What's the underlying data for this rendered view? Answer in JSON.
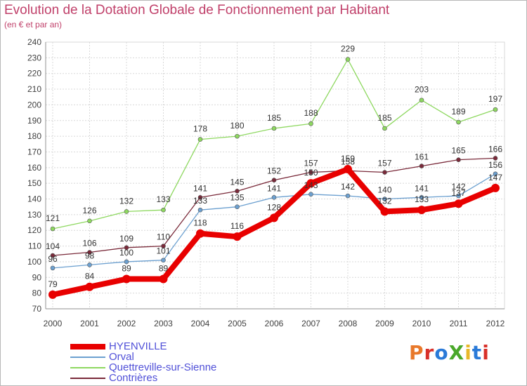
{
  "title": "Evolution de la Dotation Globale de Fonctionnement par Habitant",
  "subtitle": "(en € et par an)",
  "logo": {
    "text": "ProXiti",
    "colors": [
      "#e8782a",
      "#d8302a",
      "#2a7ad8",
      "#4aa82a",
      "#e8b82a",
      "#2a7ad8",
      "#d8302a"
    ]
  },
  "chart_data": {
    "type": "line",
    "x": [
      "2000",
      "2001",
      "2002",
      "2003",
      "2004",
      "2005",
      "2006",
      "2007",
      "2008",
      "2009",
      "2010",
      "2011",
      "2012"
    ],
    "ylim": [
      70,
      240
    ],
    "yticks": [
      70,
      80,
      90,
      100,
      110,
      120,
      130,
      140,
      150,
      160,
      170,
      180,
      190,
      200,
      210,
      220,
      230,
      240
    ],
    "grid": true,
    "legend_position": "bottom-left",
    "series": [
      {
        "name": "HYENVILLE",
        "color": "#e80000",
        "values": [
          79,
          84,
          89,
          89,
          118,
          116,
          128,
          150,
          159,
          132,
          133,
          137,
          147
        ],
        "labels": [
          "79",
          "84",
          "89",
          "89",
          "118",
          "116",
          "128",
          "150",
          "159",
          "132",
          "133",
          "137",
          "147"
        ]
      },
      {
        "name": "Orval",
        "color": "#6ca0d0",
        "values": [
          96,
          98,
          100,
          101,
          133,
          135,
          141,
          143,
          142,
          140,
          141,
          142,
          156
        ],
        "labels": [
          "96",
          "98",
          "100",
          "101",
          "133",
          "135",
          "141",
          "143",
          "142",
          "140",
          "141",
          "142",
          "156"
        ]
      },
      {
        "name": "Quettreville-sur-Sienne",
        "color": "#8ed860",
        "values": [
          121,
          126,
          132,
          133,
          178,
          180,
          185,
          188,
          229,
          185,
          203,
          189,
          197
        ],
        "labels": [
          "121",
          "126",
          "132",
          "133",
          "178",
          "180",
          "185",
          "188",
          "229",
          "185",
          "203",
          "189",
          "197"
        ]
      },
      {
        "name": "Contrières",
        "color": "#7a2a3a",
        "values": [
          104,
          106,
          109,
          110,
          141,
          145,
          152,
          157,
          158,
          157,
          161,
          165,
          166
        ],
        "labels": [
          "104",
          "106",
          "109",
          "110",
          "141",
          "145",
          "152",
          "157",
          "158",
          "157",
          "161",
          "165",
          "166"
        ]
      }
    ]
  }
}
